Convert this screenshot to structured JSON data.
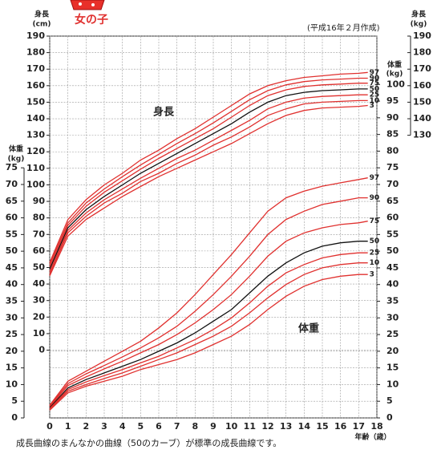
{
  "chart_data": {
    "type": "line",
    "title": "女の子",
    "note": "(平成16年２月作成)",
    "footer": "成長曲線のまんなかの曲線（50のカーブ）が標準の成長曲線です。",
    "xlabel": "年齢（歳）",
    "x": [
      0,
      1,
      2,
      3,
      4,
      5,
      6,
      7,
      8,
      9,
      10,
      11,
      12,
      13,
      14,
      15,
      16,
      17,
      17.5
    ],
    "xlim": [
      0,
      18
    ],
    "xticks": [
      0,
      1,
      2,
      3,
      4,
      5,
      6,
      7,
      8,
      9,
      10,
      11,
      12,
      13,
      14,
      15,
      16,
      17,
      18
    ],
    "grid": true,
    "height": {
      "label": "身長",
      "axis_title": "身長",
      "unit": "(cm)",
      "right_axis_title": "身長",
      "right_unit": "(kg)",
      "ylim": [
        -41,
        190
      ],
      "yticks": [
        0,
        10,
        20,
        30,
        40,
        50,
        60,
        70,
        80,
        90,
        100,
        110,
        120,
        130,
        140,
        150,
        160,
        170,
        180,
        190
      ],
      "y2ticks": [
        130,
        140,
        150,
        160,
        170,
        180,
        190
      ],
      "series": [
        {
          "name": "97",
          "color": "#e0312f",
          "values": [
            53,
            79,
            91,
            100,
            107,
            115,
            121,
            128,
            134,
            141,
            148,
            155,
            160,
            163,
            165,
            166,
            167,
            167.5,
            168
          ]
        },
        {
          "name": "90",
          "color": "#e0312f",
          "values": [
            52,
            77,
            89,
            97.5,
            105,
            112,
            118.5,
            125,
            131,
            137.5,
            144.5,
            151.5,
            157,
            160.5,
            162.5,
            163.5,
            164,
            164.5,
            164.5
          ]
        },
        {
          "name": "75",
          "color": "#e0312f",
          "values": [
            50.5,
            75.5,
            87,
            95.5,
            102.5,
            109.5,
            116,
            122,
            128,
            134,
            141,
            148,
            154,
            157.5,
            159.5,
            160.5,
            161,
            161.5,
            161.5
          ]
        },
        {
          "name": "50",
          "color": "#111111",
          "values": [
            49,
            74,
            85,
            93,
            100,
            107,
            113,
            119,
            125,
            131,
            137,
            144,
            150,
            154,
            156,
            157,
            157.5,
            158,
            158
          ]
        },
        {
          "name": "25",
          "color": "#e0312f",
          "values": [
            47.5,
            72.5,
            83,
            91,
            97.5,
            104,
            110,
            116,
            121,
            127,
            133,
            139,
            146,
            150,
            152.5,
            153.5,
            154,
            154.5,
            154.5
          ]
        },
        {
          "name": "10",
          "color": "#e0312f",
          "values": [
            46,
            71,
            81,
            89,
            95,
            102,
            107,
            113,
            118,
            124,
            129,
            135,
            142,
            146,
            149,
            150,
            150.5,
            151,
            151
          ]
        },
        {
          "name": "3",
          "color": "#e0312f",
          "values": [
            45,
            69,
            79,
            86,
            93,
            99,
            105,
            110,
            115,
            120,
            125,
            131,
            137,
            142,
            145,
            146.5,
            147,
            147.5,
            148
          ]
        }
      ]
    },
    "weight": {
      "label": "体重",
      "axis_title": "体重",
      "unit": "(kg)",
      "right_axis_title": "体重",
      "right_unit": "(kg)",
      "ylim": [
        0,
        114.5
      ],
      "yticks": [
        0,
        5,
        10,
        15,
        20,
        25,
        30,
        35,
        40,
        45,
        50,
        55,
        60,
        65,
        70,
        75
      ],
      "y2ticks": [
        0,
        5,
        10,
        15,
        20,
        25,
        30,
        35,
        40,
        45,
        50,
        55,
        60,
        65,
        70,
        75,
        80,
        85,
        90,
        95,
        100
      ],
      "series": [
        {
          "name": "97",
          "color": "#e0312f",
          "values": [
            3.8,
            11,
            14,
            17,
            20,
            23,
            27,
            31.5,
            37,
            43,
            49,
            55.5,
            62,
            66,
            68,
            69.5,
            70.5,
            71.5,
            72
          ]
        },
        {
          "name": "90",
          "color": "#e0312f",
          "values": [
            3.6,
            10.3,
            13.2,
            15.7,
            18.3,
            21,
            24,
            27.5,
            32,
            37,
            42.5,
            48.5,
            55,
            59.5,
            62,
            64,
            65,
            66,
            66
          ]
        },
        {
          "name": "75",
          "color": "#e0312f",
          "values": [
            3.3,
            9.7,
            12.3,
            14.7,
            17,
            19.5,
            22,
            25,
            28.5,
            32.5,
            37,
            42.5,
            48.5,
            53,
            55.5,
            57,
            58,
            58.5,
            59
          ]
        },
        {
          "name": "50",
          "color": "#111111",
          "values": [
            3,
            9,
            11.5,
            13.5,
            15.5,
            17.5,
            20,
            22.5,
            25.5,
            29,
            32.5,
            37.5,
            42.5,
            46.5,
            49.5,
            51.5,
            52.5,
            53,
            53
          ]
        },
        {
          "name": "25",
          "color": "#e0312f",
          "values": [
            2.8,
            8.5,
            10.8,
            12.7,
            14.5,
            16.5,
            18.5,
            21,
            23.5,
            26.5,
            30,
            34.5,
            39.5,
            43.5,
            46,
            48,
            49,
            49.5,
            49.5
          ]
        },
        {
          "name": "10",
          "color": "#e0312f",
          "values": [
            2.6,
            8,
            10,
            11.8,
            13.5,
            15.5,
            17.5,
            19.5,
            22,
            24.5,
            27.5,
            31.5,
            36,
            40,
            43,
            45,
            46,
            46.5,
            46.5
          ]
        },
        {
          "name": "3",
          "color": "#e0312f",
          "values": [
            2.3,
            7.5,
            9.5,
            11,
            12.5,
            14.5,
            16,
            17.5,
            19.5,
            22,
            24.5,
            28,
            32.5,
            36.5,
            39.5,
            41.5,
            42.5,
            43,
            43
          ]
        }
      ]
    }
  }
}
